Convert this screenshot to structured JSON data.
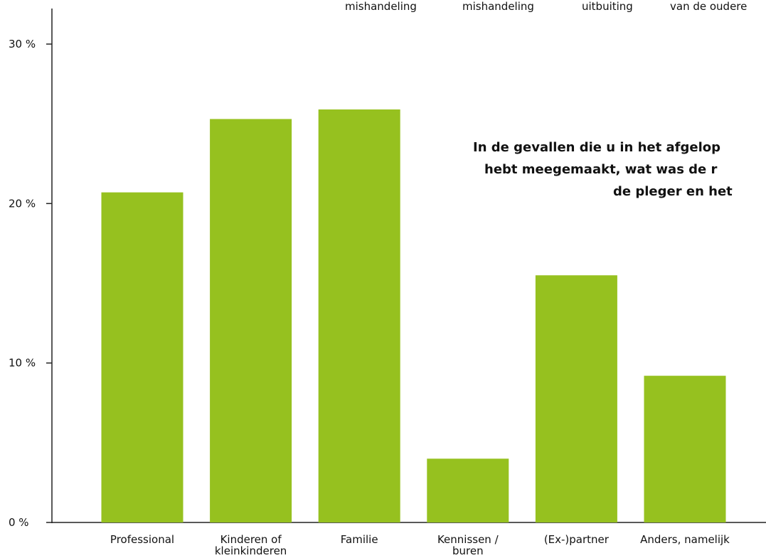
{
  "chart_data": {
    "type": "bar",
    "title_lines": [
      "In de gevallen die u in het afgelop",
      "hebt meegemaakt, wat was de r",
      "de pleger en het"
    ],
    "legend_fragments": [
      "mishandeling",
      "mishandeling",
      "uitbuiting",
      "van de oudere"
    ],
    "categories": [
      "Professional",
      "Kinderen of\nkleinkinderen",
      "Familie",
      "Kennissen /\nburen",
      "(Ex-)partner",
      "Anders, namelijk"
    ],
    "values": [
      20.7,
      25.3,
      25.9,
      4.0,
      15.5,
      9.2
    ],
    "color": "#96c11f",
    "ylim": [
      0,
      30
    ],
    "yticks": [
      {
        "value": 0,
        "label": "0 %"
      },
      {
        "value": 10,
        "label": "10 %"
      },
      {
        "value": 20,
        "label": "20 %"
      },
      {
        "value": 30,
        "label": "30 %"
      }
    ]
  }
}
